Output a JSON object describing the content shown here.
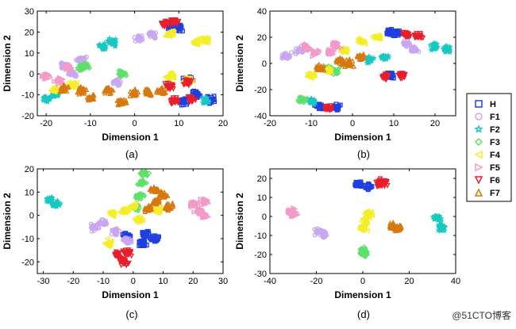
{
  "legend": {
    "title": "",
    "entries": [
      {
        "name": "H",
        "color": "#1f3fe0",
        "marker": "square"
      },
      {
        "name": "F1",
        "color": "#c9a6f0",
        "marker": "circle"
      },
      {
        "name": "F2",
        "color": "#19c8c0",
        "marker": "star"
      },
      {
        "name": "F3",
        "color": "#5ee06a",
        "marker": "diamond"
      },
      {
        "name": "F4",
        "color": "#f4ee2a",
        "marker": "triangle-left"
      },
      {
        "name": "F5",
        "color": "#f29ac8",
        "marker": "triangle-right"
      },
      {
        "name": "F6",
        "color": "#e81e2a",
        "marker": "triangle-down"
      },
      {
        "name": "F7",
        "color": "#d7780e",
        "marker": "triangle-up"
      }
    ]
  },
  "watermark": "@51CTO博客",
  "chart_data": [
    {
      "type": "scatter",
      "panel": "(a)",
      "xlabel": "Dimension 1",
      "ylabel": "Dimension 2",
      "xlim": [
        -22,
        20
      ],
      "ylim": [
        -20,
        30
      ],
      "xticks": [
        -20,
        -10,
        0,
        10,
        20
      ],
      "yticks": [
        -20,
        -10,
        0,
        10,
        20,
        30
      ],
      "clusters": [
        {
          "class": "H",
          "points": [
            [
              8,
              23
            ],
            [
              10,
              22
            ],
            [
              12,
              -3
            ],
            [
              14,
              -10
            ],
            [
              11,
              -13
            ],
            [
              17,
              -12
            ]
          ]
        },
        {
          "class": "F1",
          "points": [
            [
              1,
              17
            ],
            [
              4,
              19
            ],
            [
              -16,
              4
            ],
            [
              -12,
              7
            ],
            [
              -14,
              0
            ],
            [
              -4,
              -4
            ]
          ]
        },
        {
          "class": "F2",
          "points": [
            [
              -7,
              13
            ],
            [
              -5,
              15
            ],
            [
              -18,
              -10
            ],
            [
              -20,
              -12
            ],
            [
              16,
              -13
            ]
          ]
        },
        {
          "class": "F3",
          "points": [
            [
              -3,
              0
            ],
            [
              -11,
              4
            ],
            [
              -12,
              3
            ]
          ]
        },
        {
          "class": "F4",
          "points": [
            [
              14,
              15
            ],
            [
              16,
              16
            ],
            [
              8,
              19
            ],
            [
              -18,
              -8
            ],
            [
              -14,
              -5
            ],
            [
              8,
              -1
            ],
            [
              12,
              -3
            ]
          ]
        },
        {
          "class": "F5",
          "points": [
            [
              -20,
              -1
            ],
            [
              -17,
              -3
            ],
            [
              -15,
              3
            ]
          ]
        },
        {
          "class": "F6",
          "points": [
            [
              7,
              24
            ],
            [
              9,
              25
            ],
            [
              8,
              -6
            ],
            [
              12,
              -4
            ],
            [
              9,
              -13
            ],
            [
              13,
              -12
            ]
          ]
        },
        {
          "class": "F7",
          "points": [
            [
              -12,
              -8
            ],
            [
              -6,
              -8
            ],
            [
              0,
              -9
            ],
            [
              3,
              -9
            ],
            [
              6,
              -8
            ],
            [
              -16,
              -7
            ],
            [
              -3,
              -13
            ],
            [
              -10,
              -11
            ]
          ]
        }
      ]
    },
    {
      "type": "scatter",
      "panel": "(b)",
      "xlabel": "Dimension 1",
      "ylabel": "Dimension 2",
      "xlim": [
        -20,
        25
      ],
      "ylim": [
        -40,
        40
      ],
      "xticks": [
        -20,
        -10,
        0,
        10,
        20
      ],
      "yticks": [
        -40,
        -20,
        0,
        20,
        40
      ],
      "clusters": [
        {
          "class": "H",
          "points": [
            [
              9,
              24
            ],
            [
              11,
              23
            ],
            [
              -8,
              -33
            ],
            [
              -4,
              -34
            ],
            [
              9,
              -9
            ]
          ]
        },
        {
          "class": "F1",
          "points": [
            [
              -13,
              10
            ],
            [
              -16,
              6
            ],
            [
              13,
              15
            ],
            [
              15,
              10
            ]
          ]
        },
        {
          "class": "F2",
          "points": [
            [
              20,
              13
            ],
            [
              23,
              11
            ],
            [
              4,
              3
            ],
            [
              8,
              4
            ],
            [
              -10,
              -29
            ]
          ]
        },
        {
          "class": "F3",
          "points": [
            [
              -12,
              -28
            ],
            [
              -6,
              -4
            ],
            [
              -4,
              -6
            ]
          ]
        },
        {
          "class": "F4",
          "points": [
            [
              2,
              17
            ],
            [
              6,
              20
            ],
            [
              -2,
              10
            ],
            [
              -6,
              -5
            ],
            [
              -10,
              -9
            ]
          ]
        },
        {
          "class": "F5",
          "points": [
            [
              -11,
              12
            ],
            [
              -9,
              8
            ],
            [
              -5,
              9
            ],
            [
              -4,
              14
            ]
          ]
        },
        {
          "class": "F6",
          "points": [
            [
              13,
              22
            ],
            [
              16,
              21
            ],
            [
              12,
              -9
            ],
            [
              8,
              -10
            ],
            [
              -6,
              -34
            ]
          ]
        },
        {
          "class": "F7",
          "points": [
            [
              -3,
              2
            ],
            [
              2,
              5
            ],
            [
              -8,
              -3
            ],
            [
              -1,
              0
            ]
          ]
        }
      ]
    },
    {
      "type": "scatter",
      "panel": "(c)",
      "xlabel": "Dimension 1",
      "ylabel": "Dimension 2",
      "xlim": [
        -32,
        30
      ],
      "ylim": [
        -25,
        20
      ],
      "xticks": [
        -30,
        -20,
        -10,
        0,
        10,
        20,
        30
      ],
      "yticks": [
        -20,
        -10,
        0,
        10,
        20
      ],
      "clusters": [
        {
          "class": "H",
          "points": [
            [
              4,
              -8
            ],
            [
              7,
              -10
            ],
            [
              3,
              -12
            ],
            [
              -2,
              -9
            ]
          ]
        },
        {
          "class": "F1",
          "points": [
            [
              -13,
              -5
            ],
            [
              -10,
              -3
            ],
            [
              -6,
              -7
            ],
            [
              -2,
              -11
            ]
          ]
        },
        {
          "class": "F2",
          "points": [
            [
              -28,
              7
            ],
            [
              -26,
              5
            ]
          ]
        },
        {
          "class": "F3",
          "points": [
            [
              2,
              8
            ],
            [
              3,
              14
            ],
            [
              4,
              18
            ],
            [
              1,
              3
            ]
          ]
        },
        {
          "class": "F4",
          "points": [
            [
              -7,
              1
            ],
            [
              -3,
              2
            ],
            [
              0,
              4
            ],
            [
              2,
              -2
            ],
            [
              8,
              2
            ],
            [
              -8,
              -12
            ]
          ]
        },
        {
          "class": "F5",
          "points": [
            [
              20,
              5
            ],
            [
              24,
              6
            ],
            [
              24,
              0
            ],
            [
              22,
              2
            ]
          ]
        },
        {
          "class": "F6",
          "points": [
            [
              -5,
              -17
            ],
            [
              -2,
              -16
            ],
            [
              -3,
              -20
            ]
          ]
        },
        {
          "class": "F7",
          "points": [
            [
              7,
              11
            ],
            [
              10,
              9
            ],
            [
              5,
              3
            ],
            [
              12,
              4
            ],
            [
              8,
              6
            ]
          ]
        }
      ]
    },
    {
      "type": "scatter",
      "panel": "(d)",
      "xlabel": "Dimension 1",
      "ylabel": "Dimension 2",
      "xlim": [
        -40,
        40
      ],
      "ylim": [
        -30,
        25
      ],
      "xticks": [
        -40,
        -20,
        0,
        20,
        40
      ],
      "yticks": [
        -30,
        -20,
        -10,
        0,
        10,
        20
      ],
      "clusters": [
        {
          "class": "H",
          "points": [
            [
              -2,
              17
            ],
            [
              2,
              16
            ]
          ]
        },
        {
          "class": "F1",
          "points": [
            [
              -19,
              -8
            ],
            [
              -17,
              -10
            ]
          ]
        },
        {
          "class": "F2",
          "points": [
            [
              32,
              -1
            ],
            [
              34,
              -6
            ]
          ]
        },
        {
          "class": "F3",
          "points": [
            [
              0,
              -18
            ],
            [
              1,
              -20
            ]
          ]
        },
        {
          "class": "F4",
          "points": [
            [
              1,
              -2
            ],
            [
              2,
              2
            ],
            [
              0,
              -6
            ]
          ]
        },
        {
          "class": "F5",
          "points": [
            [
              -31,
              3
            ],
            [
              -30,
              1
            ]
          ]
        },
        {
          "class": "F6",
          "points": [
            [
              7,
              17
            ],
            [
              9,
              18
            ]
          ]
        },
        {
          "class": "F7",
          "points": [
            [
              13,
              -5
            ],
            [
              15,
              -6
            ]
          ]
        }
      ]
    }
  ]
}
